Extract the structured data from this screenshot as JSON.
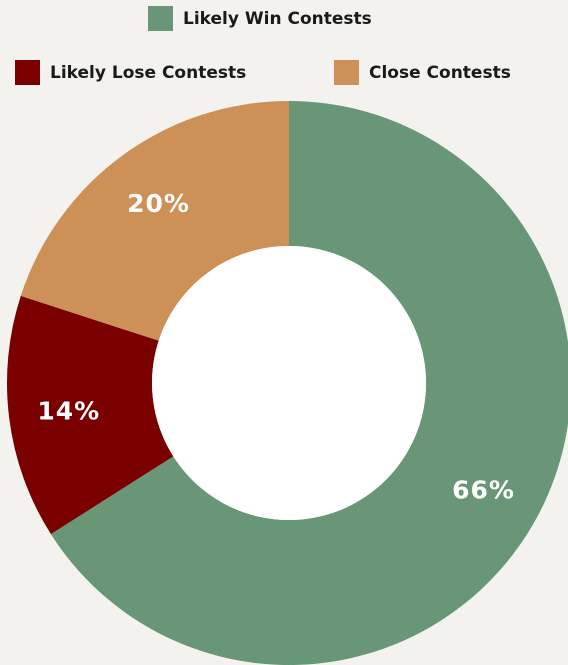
{
  "chart_data": {
    "type": "pie",
    "donut": true,
    "legend_position": "top",
    "series": [
      {
        "name": "Likely Win Contests",
        "value": 66,
        "label": "66%",
        "color": "#689676"
      },
      {
        "name": "Likely Lose Contests",
        "value": 14,
        "label": "14%",
        "color": "#7a0000"
      },
      {
        "name": "Close Contests",
        "value": 20,
        "label": "20%",
        "color": "#cd9057"
      }
    ]
  },
  "colors": {
    "background": "#f3f2ee",
    "donut_hole": "#ffffff",
    "label_text": "#ffffff"
  }
}
